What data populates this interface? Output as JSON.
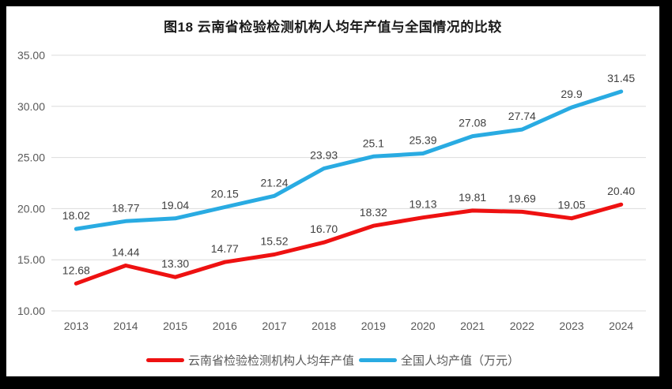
{
  "title": "图18  云南省检验检测机构人均年产值与全国情况的比较",
  "chart_data": {
    "type": "line",
    "title": "图18  云南省检验检测机构人均年产值与全国情况的比较",
    "categories": [
      "2013",
      "2014",
      "2015",
      "2016",
      "2017",
      "2018",
      "2019",
      "2020",
      "2021",
      "2022",
      "2023",
      "2024"
    ],
    "series": [
      {
        "name": "云南省检验检测机构人均年产值",
        "color": "#ee1111",
        "values": [
          12.68,
          14.44,
          13.3,
          14.77,
          15.52,
          16.7,
          18.32,
          19.13,
          19.81,
          19.69,
          19.05,
          20.4
        ],
        "labels": [
          "12.68",
          "14.44",
          "13.30",
          "14.77",
          "15.52",
          "16.70",
          "18.32",
          "19.13",
          "19.81",
          "19.69",
          "19.05",
          "20.40"
        ]
      },
      {
        "name": "全国人均产值（万元）",
        "color": "#29abe2",
        "values": [
          18.02,
          18.77,
          19.04,
          20.15,
          21.24,
          23.93,
          25.1,
          25.39,
          27.08,
          27.74,
          29.9,
          31.45
        ],
        "labels": [
          "18.02",
          "18.77",
          "19.04",
          "20.15",
          "21.24",
          "23.93",
          "25.1",
          "25.39",
          "27.08",
          "27.74",
          "29.9",
          "31.45"
        ]
      }
    ],
    "xlabel": "",
    "ylabel": "",
    "ylim": [
      10,
      35
    ],
    "y_ticks": [
      "10.00",
      "15.00",
      "20.00",
      "25.00",
      "30.00",
      "35.00"
    ],
    "y_tick_values": [
      10,
      15,
      20,
      25,
      30,
      35
    ],
    "grid": true,
    "legend_position": "bottom",
    "colors": {
      "gridline": "#dcdcdc",
      "tick_text": "#595959",
      "data_label_text": "#404040",
      "frame": "#000000",
      "background": "#ffffff"
    }
  }
}
